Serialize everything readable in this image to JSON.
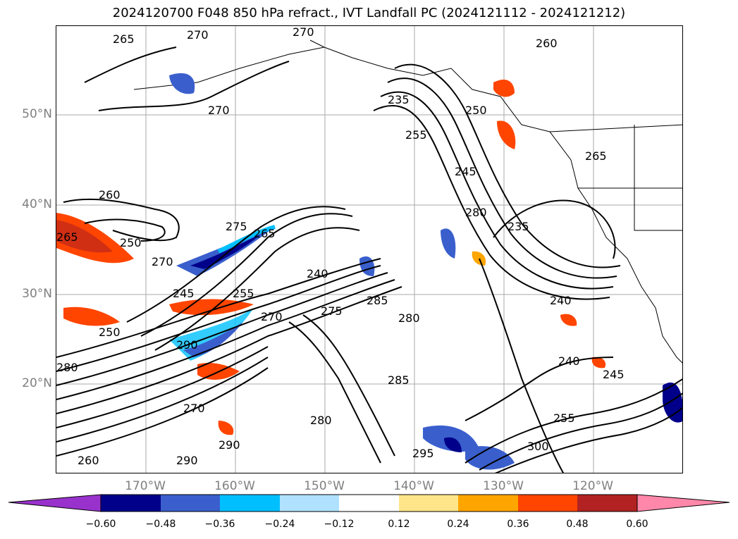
{
  "title": "2024120700 F048 850 hPa refract., IVT Landfall PC (2024121112 - 2024121212)",
  "lat_labels": [
    "50°N",
    "40°N",
    "30°N",
    "20°N"
  ],
  "lon_labels": [
    "170°W",
    "160°W",
    "150°W",
    "140°W",
    "130°W",
    "120°W"
  ],
  "contour_labels": [
    "265",
    "270",
    "270",
    "260",
    "265",
    "250",
    "270",
    "265",
    "260",
    "250",
    "270",
    "275",
    "265",
    "235",
    "240",
    "245",
    "255",
    "250",
    "290",
    "280",
    "270",
    "275",
    "285",
    "280",
    "235",
    "245",
    "255",
    "280",
    "240",
    "240",
    "245",
    "255",
    "280",
    "285",
    "295",
    "290",
    "300",
    "290",
    "260",
    "270"
  ],
  "colorbar": {
    "ticks": [
      "−0.60",
      "−0.48",
      "−0.36",
      "−0.24",
      "−0.12",
      "0.12",
      "0.24",
      "0.36",
      "0.48",
      "0.60"
    ],
    "colors": [
      "#9932cc",
      "#00008b",
      "#3a5fcd",
      "#00bfff",
      "#b0e2ff",
      "#ffffff",
      "#ffe58a",
      "#ffa500",
      "#ff4500",
      "#b22222",
      "#ff88aa"
    ]
  }
}
